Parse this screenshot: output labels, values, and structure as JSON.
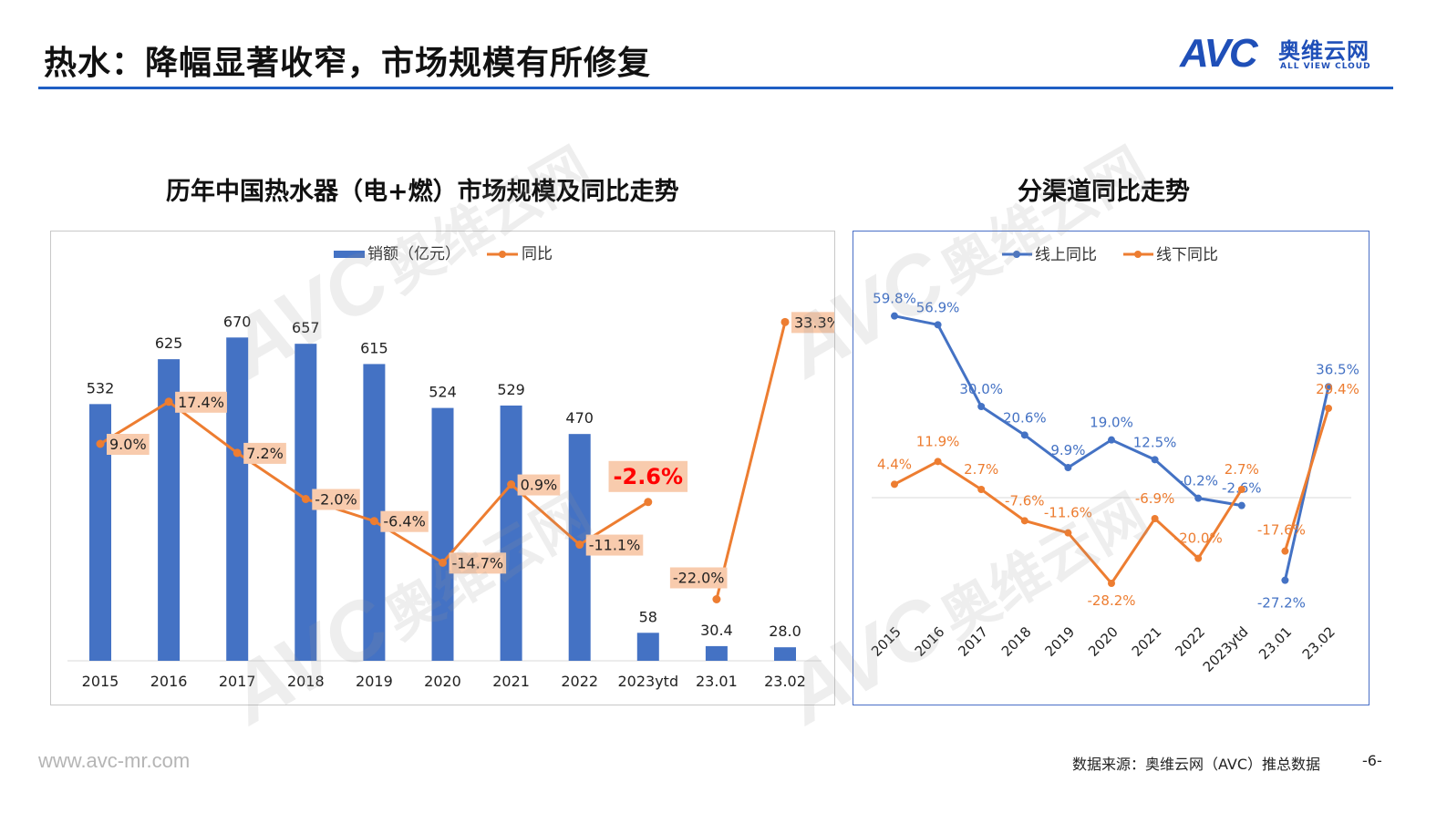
{
  "header": {
    "title": "热水：降幅显著收窄，市场规模有所修复",
    "logo_mark": "AVC",
    "logo_cn": "奥维云网",
    "logo_en": "ALL VIEW CLOUD"
  },
  "colors": {
    "bar": "#4472c4",
    "line_orange": "#ed7d31",
    "line_blue": "#4472c4",
    "label_bg": "#f8cbad",
    "highlight": "#ff0000",
    "rule": "#1f5fc4"
  },
  "chart_data": [
    {
      "type": "bar",
      "title": "历年中国热水器（电+燃）市场规模及同比走势",
      "categories": [
        "2015",
        "2016",
        "2017",
        "2018",
        "2019",
        "2020",
        "2021",
        "2022",
        "2023ytd",
        "23.01",
        "23.02"
      ],
      "legend": [
        "销额（亿元）",
        "同比"
      ],
      "legend_position": "top",
      "bar_labels": [
        "532",
        "625",
        "670",
        "657",
        "615",
        "524",
        "529",
        "470",
        "58",
        "30.4",
        "28.0"
      ],
      "line_labels": [
        "9.0%",
        "17.4%",
        "7.2%",
        "-2.0%",
        "-6.4%",
        "-14.7%",
        "0.9%",
        "-11.1%",
        "-2.6%",
        "-22.0%",
        "33.3%"
      ],
      "series": [
        {
          "name": "销额（亿元）",
          "type": "bar",
          "values": [
            532,
            625,
            670,
            657,
            615,
            524,
            529,
            470,
            58,
            30.4,
            28.0
          ]
        },
        {
          "name": "同比",
          "type": "line",
          "values": [
            9.0,
            17.4,
            7.2,
            -2.0,
            -6.4,
            -14.7,
            0.9,
            -11.1,
            -2.6,
            -22.0,
            33.3
          ]
        }
      ],
      "grid": false
    },
    {
      "type": "line",
      "title": "分渠道同比走势",
      "categories": [
        "2015",
        "2016",
        "2017",
        "2018",
        "2019",
        "2020",
        "2021",
        "2022",
        "2023ytd",
        "23.01",
        "23.02"
      ],
      "legend": [
        "线上同比",
        "线下同比"
      ],
      "legend_position": "top",
      "online_labels": [
        "59.8%",
        "56.9%",
        "30.0%",
        "20.6%",
        "9.9%",
        "19.0%",
        "12.5%",
        "-0.2%",
        "-2.6%",
        "-27.2%",
        "36.5%"
      ],
      "offline_labels": [
        "4.4%",
        "11.9%",
        "2.7%",
        "-7.6%",
        "-11.6%",
        "-28.2%",
        "-6.9%",
        "-20.0%",
        "2.7%",
        "-17.6%",
        "29.4%"
      ],
      "series": [
        {
          "name": "线上同比",
          "values": [
            59.8,
            56.9,
            30.0,
            20.6,
            9.9,
            19.0,
            12.5,
            -0.2,
            -2.6,
            -27.2,
            36.5
          ]
        },
        {
          "name": "线下同比",
          "values": [
            4.4,
            11.9,
            2.7,
            -7.6,
            -11.6,
            -28.2,
            -6.9,
            -20.0,
            2.7,
            -17.6,
            29.4
          ]
        }
      ],
      "grid": false
    }
  ],
  "footer": {
    "url": "www.avc-mr.com",
    "source": "数据来源：奥维云网（AVC）推总数据",
    "page": "-6-"
  },
  "watermark": {
    "mark": "AVC",
    "cn": "奥维云网",
    "en": "ALL VIEW CLOUD"
  }
}
